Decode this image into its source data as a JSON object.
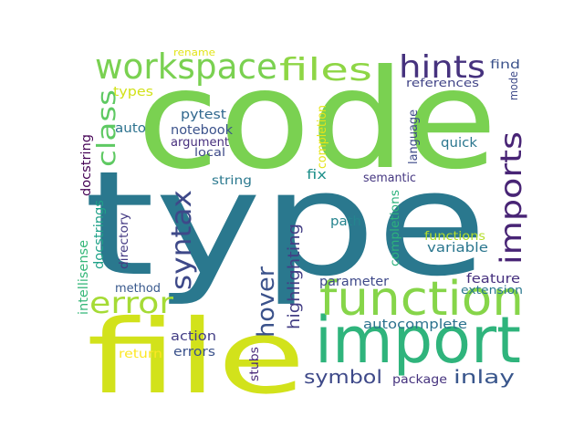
{
  "words": [
    {
      "text": "code",
      "color": "#7ad151"
    },
    {
      "text": "type",
      "color": "#2a788e"
    },
    {
      "text": "file",
      "color": "#d2e21b"
    },
    {
      "text": "import",
      "color": "#2fb47c"
    },
    {
      "text": "function",
      "color": "#86d549"
    },
    {
      "text": "workspace",
      "color": "#7ad151"
    },
    {
      "text": "files",
      "color": "#8ed645"
    },
    {
      "text": "hints",
      "color": "#46327e"
    },
    {
      "text": "imports",
      "color": "#482475"
    },
    {
      "text": "syntax",
      "color": "#3e4989"
    },
    {
      "text": "error",
      "color": "#a5db36"
    },
    {
      "text": "class",
      "color": "#5ec962"
    },
    {
      "text": "hover",
      "color": "#3b528b"
    },
    {
      "text": "highlighting",
      "color": "#433e85"
    },
    {
      "text": "symbol",
      "color": "#3e4989"
    },
    {
      "text": "inlay",
      "color": "#39568c"
    },
    {
      "text": "autocomplete",
      "color": "#2c728e"
    },
    {
      "text": "pytest",
      "color": "#31688e"
    },
    {
      "text": "notebook",
      "color": "#3b528b"
    },
    {
      "text": "argument",
      "color": "#472f7d"
    },
    {
      "text": "local",
      "color": "#3e4a89"
    },
    {
      "text": "types",
      "color": "#d2e21b"
    },
    {
      "text": "auto",
      "color": "#2c728e"
    },
    {
      "text": "references",
      "color": "#414487"
    },
    {
      "text": "find",
      "color": "#3b528b"
    },
    {
      "text": "mode",
      "color": "#3e4a89"
    },
    {
      "text": "language",
      "color": "#3e4a89"
    },
    {
      "text": "completion",
      "color": "#e5e419"
    },
    {
      "text": "quick",
      "color": "#2a768e"
    },
    {
      "text": "fix",
      "color": "#21918c"
    },
    {
      "text": "semantic",
      "color": "#453781"
    },
    {
      "text": "string",
      "color": "#2a788e"
    },
    {
      "text": "docstring",
      "color": "#440154"
    },
    {
      "text": "docstrings",
      "color": "#1fa188"
    },
    {
      "text": "directory",
      "color": "#443a83"
    },
    {
      "text": "path",
      "color": "#25848e"
    },
    {
      "text": "completions",
      "color": "#2db27d"
    },
    {
      "text": "functions",
      "color": "#b5de2b"
    },
    {
      "text": "variable",
      "color": "#2a768e"
    },
    {
      "text": "feature",
      "color": "#46307e"
    },
    {
      "text": "extension",
      "color": "#2a788e"
    },
    {
      "text": "parameter",
      "color": "#3e4989"
    },
    {
      "text": "intellisense",
      "color": "#35b779"
    },
    {
      "text": "method",
      "color": "#38588c"
    },
    {
      "text": "action",
      "color": "#433e85"
    },
    {
      "text": "errors",
      "color": "#3b528b"
    },
    {
      "text": "return",
      "color": "#fde725"
    },
    {
      "text": "stubs",
      "color": "#482878"
    },
    {
      "text": "package",
      "color": "#46337e"
    },
    {
      "text": "rename",
      "color": "#e2e418"
    }
  ]
}
